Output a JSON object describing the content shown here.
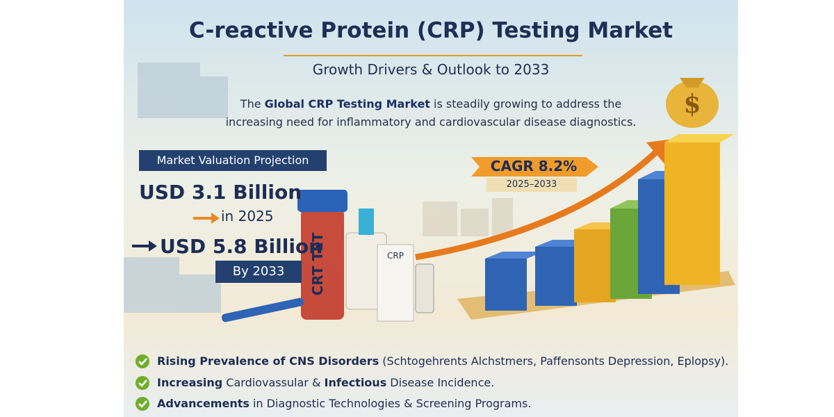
{
  "header": {
    "title": "C-reactive Protein (CRP) Testing Market",
    "subtitle": "Growth Drivers & Outlook to 2033"
  },
  "description": {
    "line1": [
      {
        "text": "The ",
        "bold": false
      },
      {
        "text": "Global CRP Testing Market",
        "bold": true
      },
      {
        "text": " is steadily growing to address the",
        "bold": false
      }
    ],
    "line2": [
      {
        "text": "increasing need for inflammatory and cardiovascular disease diagnostics.",
        "bold": false
      }
    ]
  },
  "valuation": {
    "heading": "Market Valuation Projection",
    "start_value": "USD 3.1 Billion",
    "start_year": "in 2025",
    "end_value": "USD 5.8 Billion",
    "end_year": "By 2033"
  },
  "cagr": {
    "label": "CAGR 8.2%",
    "period": "2025–2033"
  },
  "products": {
    "tube_label": "CRT TET",
    "kit_label": "CRP"
  },
  "bullets": [
    [
      {
        "text": "Rising Prevalence of CNS Disorders",
        "bold": true
      },
      {
        "text": " (Schtogehrents Alchstmers, Paffensonts Depression, Eplopsy).",
        "bold": false
      }
    ],
    [
      {
        "text": "Increasing",
        "bold": true
      },
      {
        "text": " Cardiovassular & ",
        "bold": false
      },
      {
        "text": "Infectious",
        "bold": true
      },
      {
        "text": " Disease Incidence.",
        "bold": false
      }
    ],
    [
      {
        "text": "Advancements",
        "bold": true
      },
      {
        "text": " in Diagnostic Technologies & Screening Programs.",
        "bold": false
      }
    ]
  ]
}
